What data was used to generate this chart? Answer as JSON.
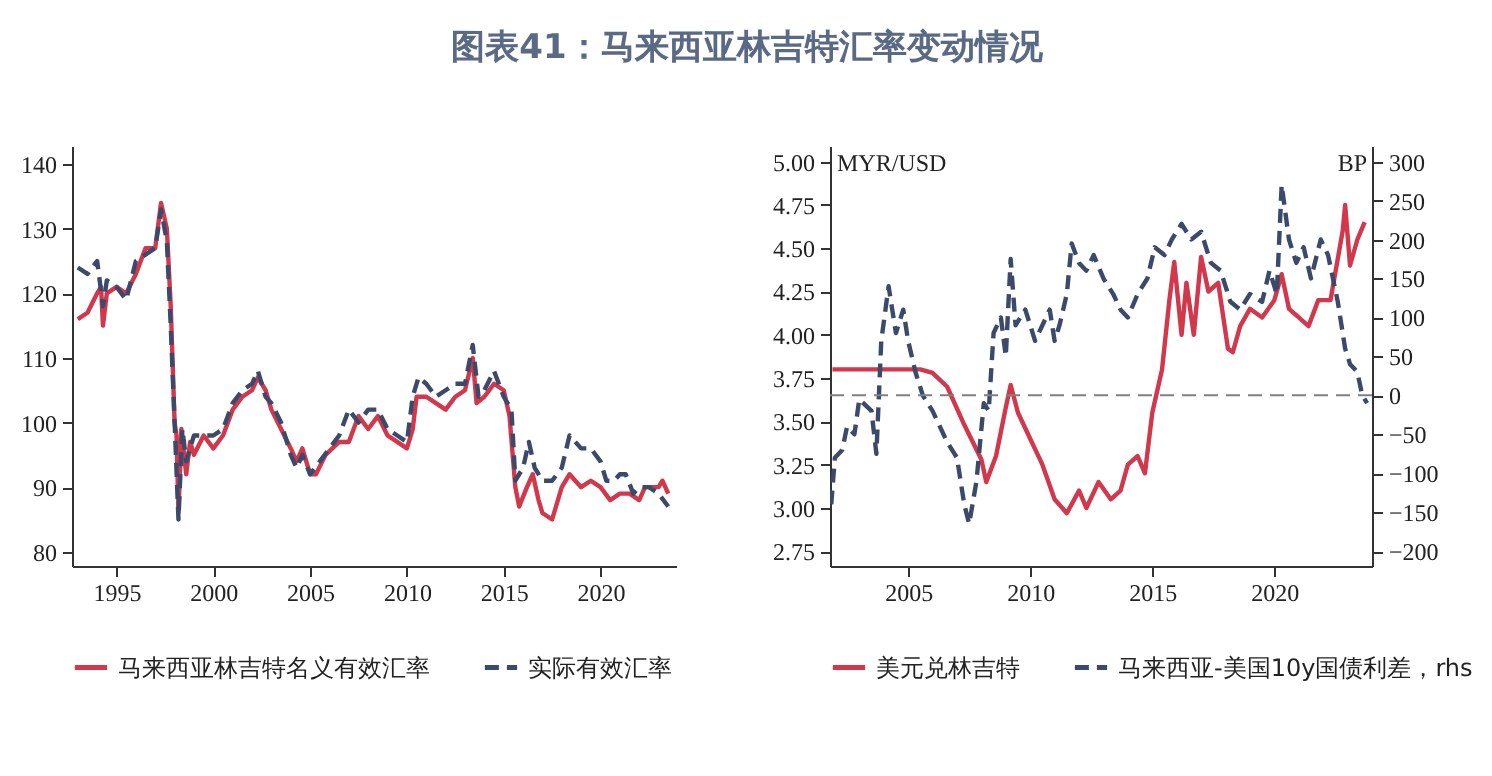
{
  "chart_data": [
    {
      "type": "line",
      "title": "图表41：马来西亚林吉特汇率变动情况",
      "legend": "bottom",
      "xlim": [
        1992.7,
        2023.9
      ],
      "xticks": [
        1995,
        2000,
        2005,
        2010,
        2015,
        2020
      ],
      "ylim": [
        77.8,
        142.8
      ],
      "yticks": [
        80,
        90,
        100,
        110,
        120,
        130,
        140
      ],
      "series": [
        {
          "name": "马来西亚林吉特名义有效汇率",
          "color": "#d2374b",
          "line_style": "solid",
          "x": [
            1993.0,
            1993.5,
            1994.0,
            1994.2,
            1994.3,
            1994.5,
            1995.0,
            1995.5,
            1996.0,
            1996.5,
            1997.0,
            1997.3,
            1997.6,
            1997.8,
            1998.0,
            1998.1,
            1998.2,
            1998.35,
            1998.6,
            1998.8,
            1999.0,
            1999.5,
            2000.0,
            2000.5,
            2001.0,
            2001.5,
            2002.0,
            2002.3,
            2002.7,
            2003.0,
            2003.5,
            2004.0,
            2004.3,
            2004.6,
            2005.0,
            2005.3,
            2005.8,
            2006.5,
            2007.0,
            2007.5,
            2008.0,
            2008.5,
            2009.0,
            2009.5,
            2010.0,
            2010.3,
            2010.5,
            2011.0,
            2011.5,
            2012.0,
            2012.5,
            2013.0,
            2013.4,
            2013.6,
            2014.0,
            2014.5,
            2015.0,
            2015.3,
            2015.6,
            2015.8,
            2016.2,
            2016.5,
            2016.8,
            2017.0,
            2017.5,
            2018.0,
            2018.4,
            2019.0,
            2019.5,
            2020.0,
            2020.5,
            2021.0,
            2021.5,
            2022.0,
            2022.3,
            2023.0,
            2023.2,
            2023.5
          ],
          "values": [
            116,
            117,
            120,
            121,
            115,
            120,
            121,
            120,
            123,
            127,
            127,
            134,
            130,
            118,
            100,
            98,
            86,
            99,
            92,
            97,
            95,
            98,
            96,
            98,
            102,
            104,
            105,
            107,
            105,
            102,
            99,
            96,
            94,
            96,
            92,
            92,
            95,
            97,
            97,
            101,
            99,
            101,
            98,
            97,
            96,
            99,
            104,
            104,
            103,
            102,
            104,
            105,
            110,
            103,
            104,
            106,
            105,
            101,
            90,
            87,
            90,
            92,
            88,
            86,
            85,
            90,
            92,
            90,
            91,
            90,
            88,
            89,
            89,
            88,
            90,
            90,
            91,
            89
          ]
        },
        {
          "name": "实际有效汇率",
          "color": "#3b4a6b",
          "line_style": "dashed",
          "x": [
            1993.0,
            1993.5,
            1994.0,
            1994.3,
            1994.5,
            1995.0,
            1995.5,
            1996.0,
            1996.5,
            1997.0,
            1997.3,
            1997.6,
            1997.8,
            1998.0,
            1998.2,
            1998.4,
            1998.6,
            1999.0,
            1999.5,
            2000.0,
            2000.5,
            2001.0,
            2001.5,
            2002.0,
            2002.3,
            2002.7,
            2003.0,
            2003.5,
            2004.0,
            2004.3,
            2004.6,
            2005.0,
            2005.5,
            2006.0,
            2006.5,
            2007.0,
            2007.5,
            2008.0,
            2008.5,
            2009.0,
            2009.5,
            2010.0,
            2010.3,
            2010.6,
            2011.0,
            2011.5,
            2012.0,
            2012.5,
            2013.0,
            2013.4,
            2013.7,
            2014.0,
            2014.5,
            2015.0,
            2015.4,
            2015.6,
            2016.0,
            2016.3,
            2016.6,
            2017.0,
            2017.5,
            2018.0,
            2018.4,
            2019.0,
            2019.5,
            2020.0,
            2020.3,
            2020.7,
            2021.0,
            2021.3,
            2021.7,
            2022.0,
            2022.5,
            2023.0,
            2023.5
          ],
          "values": [
            124,
            123,
            125,
            118,
            122,
            121,
            119,
            125,
            126,
            127,
            133,
            128,
            115,
            100,
            85,
            99,
            94,
            98,
            98,
            98,
            99,
            103,
            105,
            106,
            108,
            104,
            103,
            100,
            95,
            93,
            95,
            92,
            94,
            96,
            98,
            102,
            100,
            102,
            102,
            99,
            98,
            97,
            104,
            107,
            106,
            104,
            105,
            106,
            106,
            112,
            104,
            105,
            108,
            104,
            102,
            91,
            93,
            97,
            93,
            91,
            91,
            93,
            98,
            96,
            96,
            94,
            91,
            91,
            92,
            92,
            89,
            90,
            90,
            89,
            87
          ]
        }
      ]
    },
    {
      "type": "line",
      "legend": "bottom",
      "ylabel": "MYR/USD",
      "y2label": "BP",
      "xlim": [
        2001.8,
        2024.0
      ],
      "xticks": [
        2005,
        2010,
        2015,
        2020
      ],
      "ylim": [
        2.665,
        5.09
      ],
      "yticks": [
        {
          "value": 2.75,
          "label": "2.75"
        },
        {
          "value": 3,
          "label": "3.00"
        },
        {
          "value": 3.25,
          "label": "3.25"
        },
        {
          "value": 3.5,
          "label": "3.50"
        },
        {
          "value": 3.75,
          "label": "3.75"
        },
        {
          "value": 4,
          "label": "4.00"
        },
        {
          "value": 4.25,
          "label": "4.25"
        },
        {
          "value": 4.5,
          "label": "4.50"
        },
        {
          "value": 4.75,
          "label": "4.75"
        },
        {
          "value": 5,
          "label": "5.00"
        }
      ],
      "y2lim": [
        -219,
        320
      ],
      "y2ticks": [
        -200,
        -150,
        -100,
        -50,
        0,
        50,
        100,
        150,
        200,
        250,
        300
      ],
      "ref_lines": [
        {
          "axis": "y2",
          "value": 0,
          "color": "#808080",
          "line_style": "dashed"
        }
      ],
      "series": [
        {
          "name": "美元兑林吉特",
          "color": "#d2374b",
          "line_style": "solid",
          "x": [
            2001.9,
            2005.5,
            2006.0,
            2006.6,
            2007.3,
            2008.0,
            2008.2,
            2008.6,
            2009.0,
            2009.2,
            2009.5,
            2010.0,
            2010.5,
            2011.0,
            2011.5,
            2012.0,
            2012.3,
            2012.8,
            2013.3,
            2013.7,
            2014.0,
            2014.4,
            2014.7,
            2015.0,
            2015.4,
            2015.7,
            2015.9,
            2016.2,
            2016.4,
            2016.7,
            2017.0,
            2017.3,
            2017.7,
            2018.1,
            2018.3,
            2018.6,
            2019.0,
            2019.5,
            2020.0,
            2020.3,
            2020.6,
            2021.0,
            2021.4,
            2021.8,
            2022.3,
            2022.8,
            2022.9,
            2023.1,
            2023.4,
            2023.7
          ],
          "values": [
            3.8,
            3.8,
            3.78,
            3.7,
            3.48,
            3.28,
            3.15,
            3.3,
            3.58,
            3.71,
            3.55,
            3.4,
            3.25,
            3.05,
            2.97,
            3.1,
            3.0,
            3.15,
            3.05,
            3.1,
            3.25,
            3.3,
            3.2,
            3.55,
            3.8,
            4.2,
            4.42,
            4.0,
            4.3,
            4.0,
            4.45,
            4.25,
            4.3,
            3.92,
            3.9,
            4.05,
            4.15,
            4.1,
            4.2,
            4.35,
            4.15,
            4.1,
            4.05,
            4.2,
            4.2,
            4.6,
            4.75,
            4.4,
            4.55,
            4.65
          ]
        },
        {
          "name": "马来西亚-美国10y国债利差，rhs",
          "color": "#3b4a6b",
          "line_style": "dashed",
          "axis": "y2",
          "x": [
            2001.85,
            2002.0,
            2002.3,
            2002.5,
            2002.8,
            2003.0,
            2003.5,
            2003.7,
            2003.9,
            2004.2,
            2004.5,
            2004.8,
            2005.0,
            2005.3,
            2005.6,
            2006.0,
            2006.3,
            2006.6,
            2007.0,
            2007.3,
            2007.5,
            2007.8,
            2008.1,
            2008.3,
            2008.5,
            2008.8,
            2009.0,
            2009.2,
            2009.4,
            2009.8,
            2010.2,
            2010.5,
            2010.8,
            2011.0,
            2011.2,
            2011.5,
            2011.7,
            2012.0,
            2012.3,
            2012.6,
            2013.0,
            2013.4,
            2013.7,
            2014.0,
            2014.4,
            2014.8,
            2015.1,
            2015.5,
            2015.8,
            2016.2,
            2016.6,
            2017.0,
            2017.4,
            2017.8,
            2018.2,
            2018.6,
            2019.0,
            2019.5,
            2019.8,
            2020.1,
            2020.3,
            2020.6,
            2020.9,
            2021.2,
            2021.5,
            2021.9,
            2022.2,
            2022.6,
            2022.9,
            2023.1,
            2023.4,
            2023.6,
            2023.8
          ],
          "values": [
            -140,
            -80,
            -70,
            -40,
            -50,
            -5,
            -20,
            -75,
            70,
            140,
            80,
            110,
            70,
            30,
            0,
            -20,
            -40,
            -60,
            -80,
            -140,
            -165,
            -110,
            -10,
            -20,
            80,
            100,
            50,
            175,
            90,
            110,
            70,
            90,
            110,
            70,
            90,
            130,
            195,
            170,
            160,
            180,
            150,
            130,
            110,
            100,
            130,
            150,
            190,
            180,
            200,
            220,
            200,
            210,
            170,
            160,
            120,
            110,
            130,
            120,
            160,
            130,
            270,
            200,
            170,
            190,
            150,
            200,
            180,
            120,
            60,
            40,
            30,
            0,
            -10
          ]
        }
      ]
    }
  ]
}
